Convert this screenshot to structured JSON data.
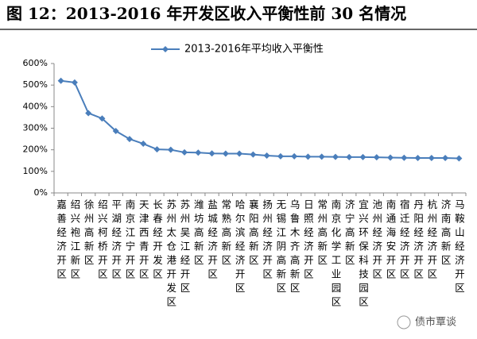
{
  "chart_data": {
    "type": "line",
    "title": "图 12：2013-2016 年开发区收入平衡性前 30 名情况",
    "categories": [
      "嘉善经济开区",
      "绍兴袍江新区",
      "徐州高新区",
      "绍兴柯桥开区",
      "平湖经济开区",
      "南京江宁开区",
      "天津西青开区",
      "长春经开发区",
      "苏州太仓港开发区",
      "苏州吴江经开区",
      "潍坊高新区",
      "盐城经济开区",
      "常熟高新区",
      "哈尔滨经济开区",
      "襄阳高新区",
      "扬州经济开区",
      "无锡江阴高新区",
      "乌鲁木齐高新区",
      "日照经济开区",
      "常州高新区",
      "南京化学工业园区",
      "济宁高新区",
      "宜兴环保科技园区",
      "池州经济开区",
      "南通海安开区",
      "宿迁经济开区",
      "丹阳经济开区",
      "杭州经济开区",
      "济南高新区",
      "马鞍山经济开区"
    ],
    "series": [
      {
        "name": "2013-2016年平均收入平衡性",
        "color": "#4a7ebb",
        "values": [
          520,
          512,
          370,
          345,
          287,
          250,
          228,
          202,
          200,
          188,
          187,
          183,
          182,
          182,
          178,
          173,
          170,
          170,
          168,
          168,
          167,
          166,
          166,
          165,
          164,
          163,
          162,
          162,
          162,
          160
        ]
      }
    ],
    "ylim": [
      0,
      600
    ],
    "yticks": [
      {
        "value": 0,
        "label": "0%"
      },
      {
        "value": 100,
        "label": "100%"
      },
      {
        "value": 200,
        "label": "200%"
      },
      {
        "value": 300,
        "label": "300%"
      },
      {
        "value": 400,
        "label": "400%"
      },
      {
        "value": 500,
        "label": "500%"
      },
      {
        "value": 600,
        "label": "600%"
      }
    ],
    "legend": "top",
    "watermark": "债市覃谈"
  }
}
